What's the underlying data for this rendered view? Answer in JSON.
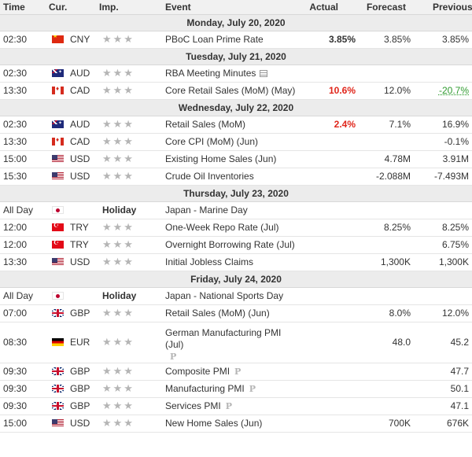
{
  "header": {
    "time": "Time",
    "currency": "Cur.",
    "importance": "Imp.",
    "event": "Event",
    "actual": "Actual",
    "forecast": "Forecast",
    "previous": "Previous"
  },
  "colors": {
    "header_bg": "#f1f1f1",
    "day_bg": "#ececec",
    "negative_surprise": "#e0261b",
    "positive_revision": "#2f9b2f",
    "star": "#b5b5b5"
  },
  "icons": {
    "star": "star-icon",
    "preliminary": "preliminary-icon",
    "document": "document-icon"
  },
  "days": [
    {
      "label": "Monday, July 20, 2020",
      "events": [
        {
          "time": "02:30",
          "flag": "cn",
          "currency": "CNY",
          "importance": "★★★",
          "event": "PBoC Loan Prime Rate",
          "actual": "3.85%",
          "actual_color": "",
          "forecast": "3.85%",
          "previous": "3.85%"
        }
      ]
    },
    {
      "label": "Tuesday, July 21, 2020",
      "events": [
        {
          "time": "02:30",
          "flag": "au",
          "currency": "AUD",
          "importance": "★★★",
          "event": "RBA Meeting Minutes",
          "icon": "document-icon",
          "actual": "",
          "forecast": "",
          "previous": ""
        },
        {
          "time": "13:30",
          "flag": "ca",
          "currency": "CAD",
          "importance": "★★★",
          "event": "Core Retail Sales (MoM) (May)",
          "actual": "10.6%",
          "actual_color": "red",
          "forecast": "12.0%",
          "previous": "-20.7%",
          "previous_color": "green"
        }
      ]
    },
    {
      "label": "Wednesday, July 22, 2020",
      "events": [
        {
          "time": "02:30",
          "flag": "au",
          "currency": "AUD",
          "importance": "★★★",
          "event": "Retail Sales (MoM)",
          "actual": "2.4%",
          "actual_color": "red",
          "forecast": "7.1%",
          "previous": "16.9%"
        },
        {
          "time": "13:30",
          "flag": "ca",
          "currency": "CAD",
          "importance": "★★★",
          "event": "Core CPI (MoM) (Jun)",
          "actual": "",
          "forecast": "",
          "previous": "-0.1%"
        },
        {
          "time": "15:00",
          "flag": "us",
          "currency": "USD",
          "importance": "★★★",
          "event": "Existing Home Sales (Jun)",
          "actual": "",
          "forecast": "4.78M",
          "previous": "3.91M"
        },
        {
          "time": "15:30",
          "flag": "us",
          "currency": "USD",
          "importance": "★★★",
          "event": "Crude Oil Inventories",
          "actual": "",
          "forecast": "-2.088M",
          "previous": "-7.493M"
        }
      ]
    },
    {
      "label": "Thursday, July 23, 2020",
      "events": [
        {
          "time": "All Day",
          "flag": "jp",
          "currency": "",
          "holiday": "Holiday",
          "event": "Japan - Marine Day",
          "actual": "",
          "forecast": "",
          "previous": ""
        },
        {
          "time": "12:00",
          "flag": "tr",
          "currency": "TRY",
          "importance": "★★★",
          "event": "One-Week Repo Rate (Jul)",
          "actual": "",
          "forecast": "8.25%",
          "previous": "8.25%"
        },
        {
          "time": "12:00",
          "flag": "tr",
          "currency": "TRY",
          "importance": "★★★",
          "event": "Overnight Borrowing Rate (Jul)",
          "actual": "",
          "forecast": "",
          "previous": "6.75%"
        },
        {
          "time": "13:30",
          "flag": "us",
          "currency": "USD",
          "importance": "★★★",
          "event": "Initial Jobless Claims",
          "actual": "",
          "forecast": "1,300K",
          "previous": "1,300K"
        }
      ]
    },
    {
      "label": "Friday, July 24, 2020",
      "events": [
        {
          "time": "All Day",
          "flag": "jp",
          "currency": "",
          "holiday": "Holiday",
          "event": "Japan - National Sports Day",
          "actual": "",
          "forecast": "",
          "previous": ""
        },
        {
          "time": "07:00",
          "flag": "gb",
          "currency": "GBP",
          "importance": "★★★",
          "event": "Retail Sales (MoM) (Jun)",
          "actual": "",
          "forecast": "8.0%",
          "previous": "12.0%"
        },
        {
          "time": "08:30",
          "flag": "de",
          "currency": "EUR",
          "importance": "★★★",
          "event": "German Manufacturing PMI (Jul)",
          "preliminary": "P",
          "tall": true,
          "actual": "",
          "forecast": "48.0",
          "previous": "45.2"
        },
        {
          "time": "09:30",
          "flag": "gb",
          "currency": "GBP",
          "importance": "★★★",
          "event": "Composite PMI",
          "preliminary": "P",
          "actual": "",
          "forecast": "",
          "previous": "47.7"
        },
        {
          "time": "09:30",
          "flag": "gb",
          "currency": "GBP",
          "importance": "★★★",
          "event": "Manufacturing PMI",
          "preliminary": "P",
          "actual": "",
          "forecast": "",
          "previous": "50.1"
        },
        {
          "time": "09:30",
          "flag": "gb",
          "currency": "GBP",
          "importance": "★★★",
          "event": "Services PMI",
          "preliminary": "P",
          "actual": "",
          "forecast": "",
          "previous": "47.1"
        },
        {
          "time": "15:00",
          "flag": "us",
          "currency": "USD",
          "importance": "★★★",
          "event": "New Home Sales (Jun)",
          "actual": "",
          "forecast": "700K",
          "previous": "676K"
        }
      ]
    }
  ]
}
